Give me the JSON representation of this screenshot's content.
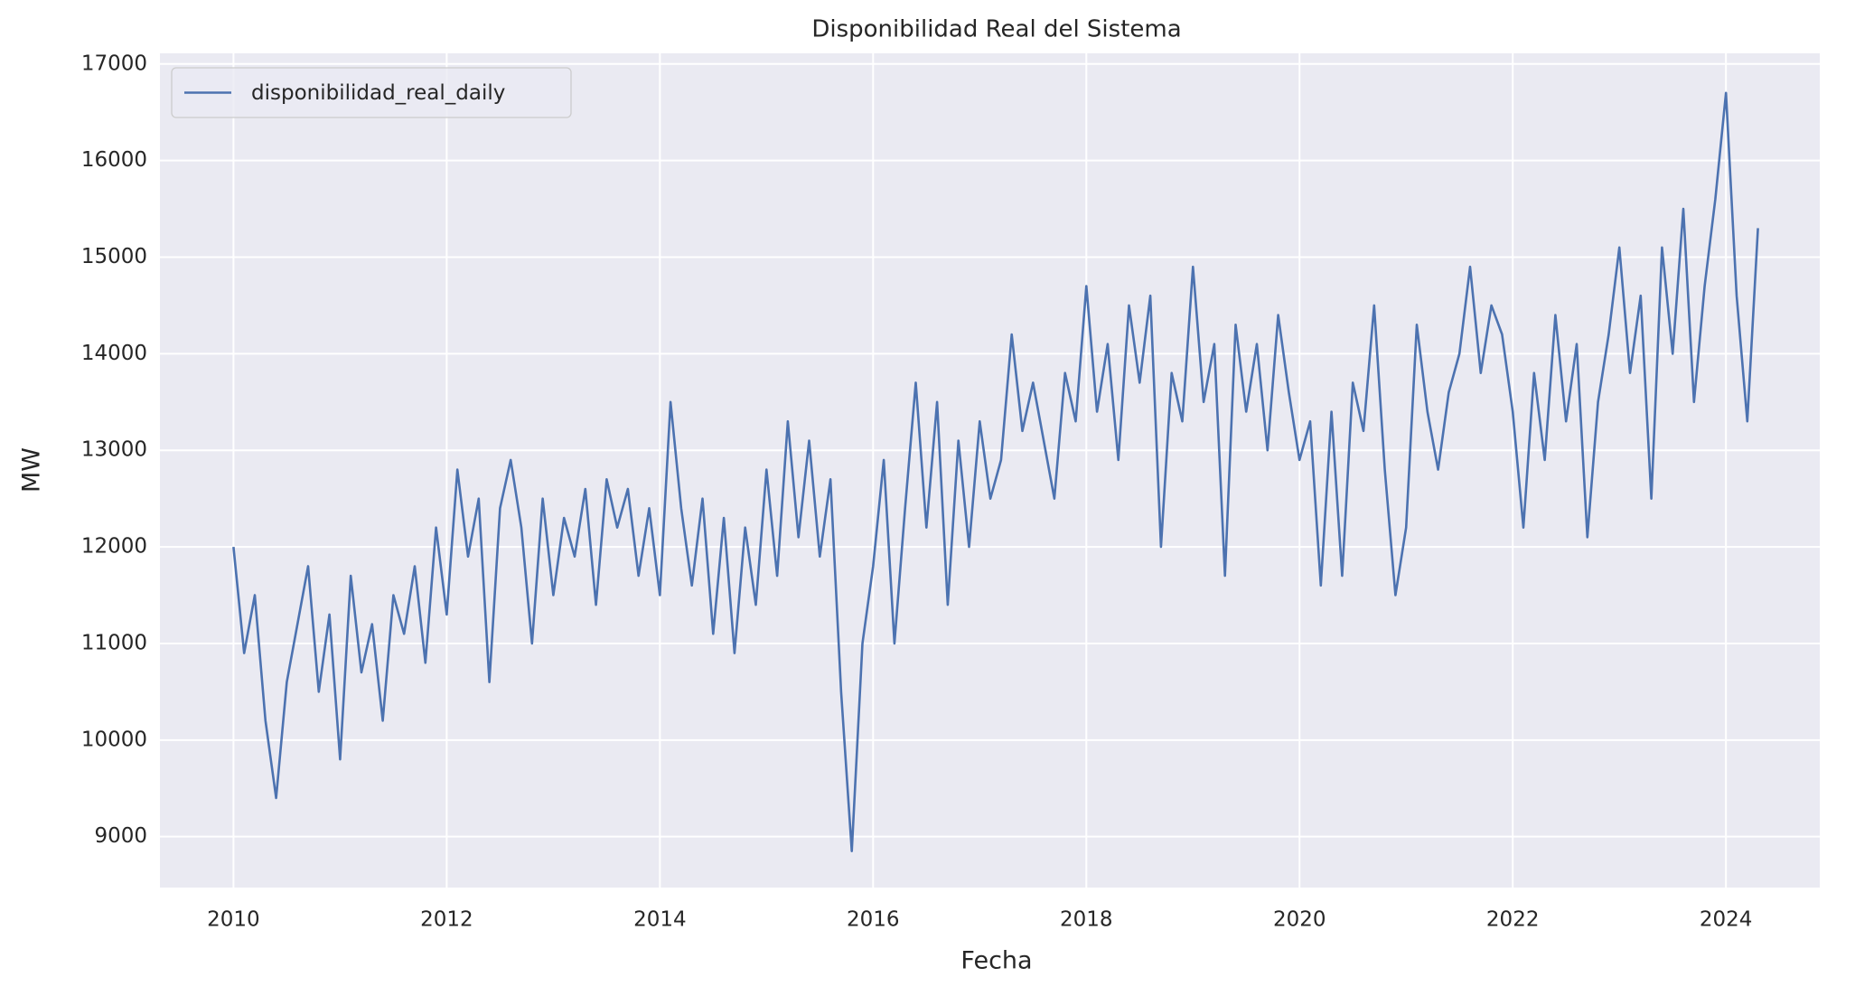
{
  "chart_data": {
    "type": "line",
    "title": "Disponibilidad Real del Sistema",
    "x_label": "Fecha",
    "y_label": "MW",
    "x": [
      2010,
      2010.1,
      2010.2,
      2010.3,
      2010.4,
      2010.5,
      2010.6,
      2010.7,
      2010.8,
      2010.9,
      2011,
      2011.1,
      2011.2,
      2011.3,
      2011.4,
      2011.5,
      2011.6,
      2011.7,
      2011.8,
      2011.9,
      2012,
      2012.1,
      2012.2,
      2012.3,
      2012.4,
      2012.5,
      2012.6,
      2012.7,
      2012.8,
      2012.9,
      2013,
      2013.1,
      2013.2,
      2013.3,
      2013.4,
      2013.5,
      2013.6,
      2013.7,
      2013.8,
      2013.9,
      2014,
      2014.1,
      2014.2,
      2014.3,
      2014.4,
      2014.5,
      2014.6,
      2014.7,
      2014.8,
      2014.9,
      2015,
      2015.1,
      2015.2,
      2015.3,
      2015.4,
      2015.5,
      2015.6,
      2015.7,
      2015.8,
      2015.9,
      2016,
      2016.1,
      2016.2,
      2016.3,
      2016.4,
      2016.5,
      2016.6,
      2016.7,
      2016.8,
      2016.9,
      2017,
      2017.1,
      2017.2,
      2017.3,
      2017.4,
      2017.5,
      2017.6,
      2017.7,
      2017.8,
      2017.9,
      2018,
      2018.1,
      2018.2,
      2018.3,
      2018.4,
      2018.5,
      2018.6,
      2018.7,
      2018.8,
      2018.9,
      2019,
      2019.1,
      2019.2,
      2019.3,
      2019.4,
      2019.5,
      2019.6,
      2019.7,
      2019.8,
      2019.9,
      2020,
      2020.1,
      2020.2,
      2020.3,
      2020.4,
      2020.5,
      2020.6,
      2020.7,
      2020.8,
      2020.9,
      2021,
      2021.1,
      2021.2,
      2021.3,
      2021.4,
      2021.5,
      2021.6,
      2021.7,
      2021.8,
      2021.9,
      2022,
      2022.1,
      2022.2,
      2022.3,
      2022.4,
      2022.5,
      2022.6,
      2022.7,
      2022.8,
      2022.9,
      2023,
      2023.1,
      2023.2,
      2023.3,
      2023.4,
      2023.5,
      2023.6,
      2023.7,
      2023.8,
      2023.9,
      2024,
      2024.1,
      2024.2,
      2024.3
    ],
    "series": [
      {
        "name": "disponibilidad_real_daily",
        "color": "#4c72b0",
        "values": [
          12000,
          10900,
          11500,
          10200,
          9400,
          10600,
          11200,
          11800,
          10500,
          11300,
          9800,
          11700,
          10700,
          11200,
          10200,
          11500,
          11100,
          11800,
          10800,
          12200,
          11300,
          12800,
          11900,
          12500,
          10600,
          12400,
          12900,
          12200,
          11000,
          12500,
          11500,
          12300,
          11900,
          12600,
          11400,
          12700,
          12200,
          12600,
          11700,
          12400,
          11500,
          13500,
          12400,
          11600,
          12500,
          11100,
          12300,
          10900,
          12200,
          11400,
          12800,
          11700,
          13300,
          12100,
          13100,
          11900,
          12700,
          10500,
          8850,
          11000,
          11800,
          12900,
          11000,
          12400,
          13700,
          12200,
          13500,
          11400,
          13100,
          12000,
          13300,
          12500,
          12900,
          14200,
          13200,
          13700,
          13100,
          12500,
          13800,
          13300,
          14700,
          13400,
          14100,
          12900,
          14500,
          13700,
          14600,
          12000,
          13800,
          13300,
          14900,
          13500,
          14100,
          11700,
          14300,
          13400,
          14100,
          13000,
          14400,
          13600,
          12900,
          13300,
          11600,
          13400,
          11700,
          13700,
          13200,
          14500,
          12800,
          11500,
          12200,
          14300,
          13400,
          12800,
          13600,
          14000,
          14900,
          13800,
          14500,
          14200,
          13400,
          12200,
          13800,
          12900,
          14400,
          13300,
          14100,
          12100,
          13500,
          14200,
          15100,
          13800,
          14600,
          12500,
          15100,
          14000,
          15500,
          13500,
          14700,
          15600,
          16700,
          14600,
          13300,
          15300
        ]
      }
    ],
    "xlim": [
      2009.31,
      2024.88
    ],
    "xticks": [
      2010,
      2012,
      2014,
      2016,
      2018,
      2020,
      2022,
      2024
    ],
    "ylim": [
      8473,
      17110
    ],
    "yticks": [
      9000,
      10000,
      11000,
      12000,
      13000,
      14000,
      15000,
      16000,
      17000
    ],
    "grid": true,
    "legend": "upper left"
  }
}
